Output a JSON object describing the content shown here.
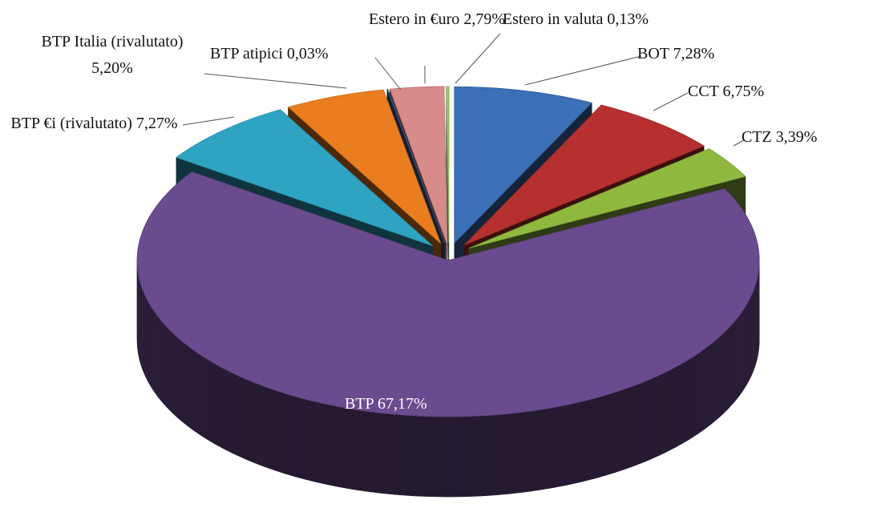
{
  "chart_data": {
    "type": "pie",
    "categories": [
      "BOT",
      "CCT",
      "CTZ",
      "BTP",
      "BTP €i (rivalutato)",
      "BTP Italia (rivalutato)",
      "BTP atipici",
      "Estero in €uro",
      "Estero in valuta"
    ],
    "values": [
      7.28,
      6.75,
      3.39,
      67.17,
      7.27,
      5.2,
      0.03,
      2.79,
      0.13
    ],
    "value_labels": [
      "7,28%",
      "6,75%",
      "3,39%",
      "67,17%",
      "7,27%",
      "5,20%",
      "0,03%",
      "2,79%",
      "0,13%"
    ],
    "colors": [
      "#3b70b7",
      "#b5302e",
      "#8fb83f",
      "#6b4b8f",
      "#2fa4c2",
      "#ea7d1f",
      "#3f5f94",
      "#d88b8b",
      "#a8c968"
    ]
  }
}
